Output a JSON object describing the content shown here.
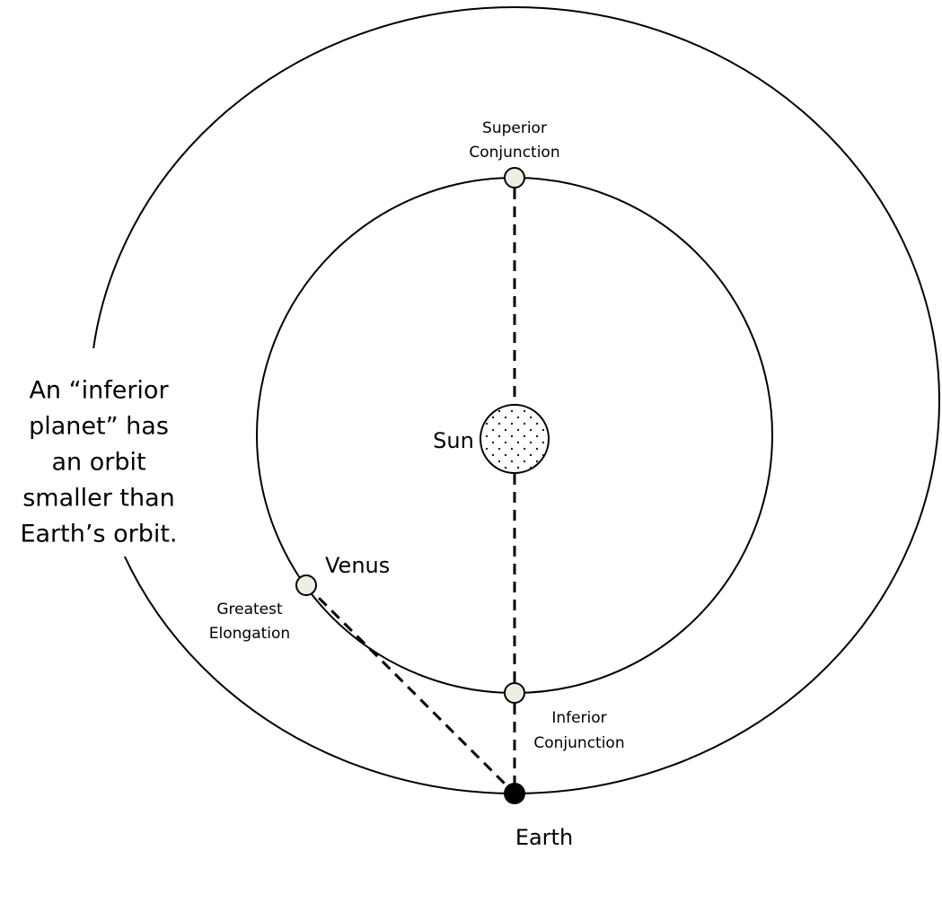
{
  "labels": {
    "superior": [
      "Superior",
      "Conjunction"
    ],
    "sun": "Sun",
    "venus": "Venus",
    "elongation": [
      "Greatest",
      "Elongation"
    ],
    "inferior": [
      "Inferior",
      "Conjunction"
    ],
    "earth": "Earth",
    "note": [
      "An “inferior",
      "planet” has",
      "an orbit",
      "smaller than",
      "Earth’s orbit."
    ]
  }
}
